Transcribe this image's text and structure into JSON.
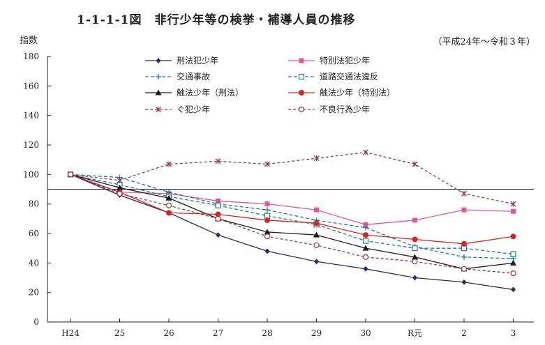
{
  "header": {
    "title": "1-1-1-1図　非行少年等の検挙・補導人員の推移",
    "ylabel": "指数",
    "period": "（平成24年～令和３年）"
  },
  "chart_data": {
    "type": "line",
    "title": "1-1-1-1図　非行少年等の検挙・補導人員の推移",
    "ylabel": "指数",
    "xlabel": "",
    "categories": [
      "H24",
      "25",
      "26",
      "27",
      "28",
      "29",
      "30",
      "R元",
      "2",
      "3"
    ],
    "yticks": [
      0,
      20,
      40,
      60,
      80,
      100,
      120,
      140,
      160,
      180
    ],
    "ylim": [
      0,
      180
    ],
    "reference_line": 90,
    "legend_position": "top",
    "series": [
      {
        "name": "刑法犯少年",
        "color": "#2b2b5e",
        "dash": "",
        "marker": "diamond",
        "values": [
          100,
          86,
          74,
          59,
          48,
          41,
          36,
          30,
          27,
          22
        ]
      },
      {
        "name": "特別法犯少年",
        "color": "#e6559a",
        "dash": "",
        "marker": "square-filled",
        "values": [
          100,
          88,
          87,
          82,
          80,
          76,
          66,
          69,
          76,
          75
        ]
      },
      {
        "name": "交通事故",
        "color": "#1e7a8c",
        "dash": "5,3",
        "marker": "plus",
        "values": [
          100,
          98,
          88,
          80,
          76,
          69,
          64,
          51,
          44,
          43
        ]
      },
      {
        "name": "道路交通法違反",
        "color": "#1e7a8c",
        "dash": "5,3",
        "marker": "square-open",
        "values": [
          100,
          93,
          85,
          79,
          72,
          66,
          55,
          50,
          50,
          46
        ]
      },
      {
        "name": "触法少年（刑法）",
        "color": "#1a1a1a",
        "dash": "",
        "marker": "triangle",
        "values": [
          100,
          91,
          84,
          70,
          61,
          59,
          50,
          44,
          36,
          40
        ]
      },
      {
        "name": "触法少年（特別法）",
        "color": "#e02020",
        "dash": "",
        "marker": "circle-filled",
        "values": [
          100,
          88,
          74,
          73,
          69,
          67,
          59,
          56,
          53,
          58
        ]
      },
      {
        "name": "ぐ犯少年",
        "color": "#8a3a5a",
        "dash": "4,3",
        "marker": "x",
        "values": [
          100,
          96,
          107,
          109,
          107,
          111,
          115,
          107,
          87,
          80
        ]
      },
      {
        "name": "不良行為少年",
        "color": "#8a3a3a",
        "dash": "4,3",
        "marker": "circle-open",
        "values": [
          100,
          87,
          79,
          70,
          58,
          52,
          44,
          41,
          36,
          33
        ]
      }
    ]
  }
}
